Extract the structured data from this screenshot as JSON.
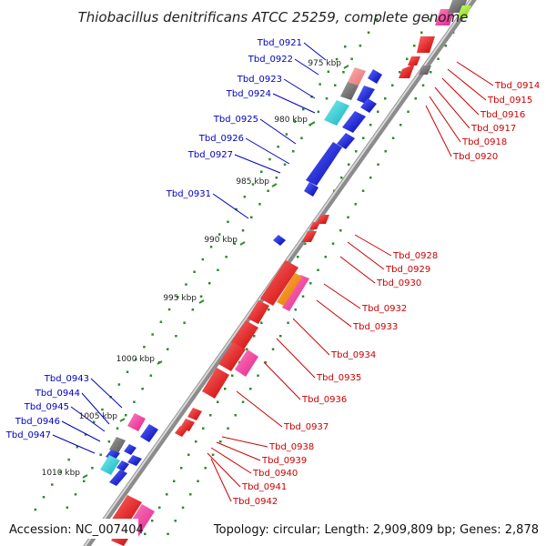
{
  "title": "Thiobacillus denitrificans ATCC 25259, complete genome",
  "footer": {
    "accession": "Accession: NC_007404",
    "summary": "Topology: circular; Length: 2,909,809 bp; Genes: 2,878"
  },
  "colors": {
    "reverse_strand_label": "#0000c0",
    "forward_strand_label": "#cc0000",
    "backbone": "#8c8c8c",
    "tick": "#2e8b2e"
  },
  "ticks": [
    "975 kbp",
    "980 kbp",
    "985 kbp",
    "990 kbp",
    "995 kbp",
    "1000 kbp",
    "1005 kbp",
    "1010 kbp"
  ],
  "reverse_labels": [
    "Tbd_0921",
    "Tbd_0922",
    "Tbd_0923",
    "Tbd_0924",
    "Tbd_0925",
    "Tbd_0926",
    "Tbd_0927",
    "Tbd_0931",
    "Tbd_0943",
    "Tbd_0944",
    "Tbd_0945",
    "Tbd_0946",
    "Tbd_0947"
  ],
  "forward_labels": [
    "Tbd_0914",
    "Tbd_0915",
    "Tbd_0916",
    "Tbd_0917",
    "Tbd_0918",
    "Tbd_0920",
    "Tbd_0928",
    "Tbd_0929",
    "Tbd_0930",
    "Tbd_0932",
    "Tbd_0933",
    "Tbd_0934",
    "Tbd_0935",
    "Tbd_0936",
    "Tbd_0937",
    "Tbd_0938",
    "Tbd_0939",
    "Tbd_0940",
    "Tbd_0941",
    "Tbd_0942"
  ]
}
